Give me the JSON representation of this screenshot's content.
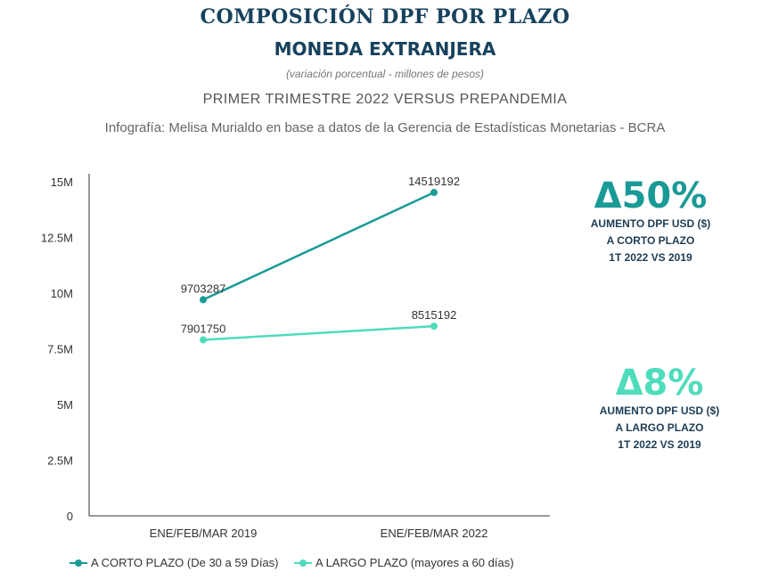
{
  "header": {
    "title": "COMPOSICIÓN DPF POR PLAZO",
    "subtitle": "MONEDA EXTRANJERA",
    "note": "(variación porcentual - millones de pesos)",
    "period": "PRIMER TRIMESTRE 2022 VERSUS PREPANDEMIA",
    "source": "Infografía: Melisa Murialdo en base a datos de la Gerencia de Estadísticas Monetarias - BCRA"
  },
  "chart_data": {
    "type": "line",
    "categories": [
      "ENE/FEB/MAR 2019",
      "ENE/FEB/MAR 2022"
    ],
    "series": [
      {
        "name": "A CORTO PLAZO (De 30 a 59 Días)",
        "values": [
          9703287,
          14519192
        ],
        "color": "#1a9a96"
      },
      {
        "name": "A LARGO PLAZO (mayores a 60 días)",
        "values": [
          7901750,
          8515192
        ],
        "color": "#4fdcbc"
      }
    ],
    "ylim": [
      0,
      15000000
    ],
    "yticks": [
      0,
      2500000,
      5000000,
      7500000,
      10000000,
      12500000,
      15000000
    ],
    "ytick_labels": [
      "0",
      "2.5M",
      "5M",
      "7.5M",
      "10M",
      "12.5M",
      "15M"
    ],
    "legend": "bottom-left",
    "grid": false
  },
  "kpis": [
    {
      "value": "Δ50%",
      "lines": [
        "AUMENTO DPF USD ($)",
        "A CORTO PLAZO",
        "1T 2022 VS 2019"
      ],
      "color": "#1a9a96"
    },
    {
      "value": "Δ8%",
      "lines": [
        "AUMENTO DPF USD ($)",
        "A LARGO PLAZO",
        "1T 2022 VS 2019"
      ],
      "color": "#4fdcbc"
    }
  ]
}
